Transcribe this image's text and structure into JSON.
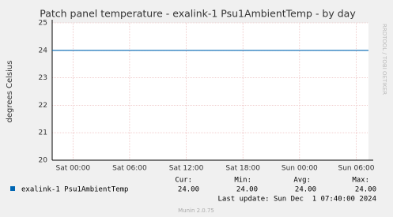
{
  "chart_data": {
    "type": "line",
    "title": "Patch panel temperature - exalink-1 Psu1AmbientTemp - by day",
    "y_label": "degrees Celsius",
    "side_text": "RRDTOOL / TOBI OETIKER",
    "x": [
      -2.2,
      31.3
    ],
    "xlim": [
      -2.2,
      31.3
    ],
    "xticks": [
      {
        "value": 0,
        "label": "Sat 00:00"
      },
      {
        "value": 6,
        "label": "Sat 06:00"
      },
      {
        "value": 12,
        "label": "Sat 12:00"
      },
      {
        "value": 18,
        "label": "Sat 18:00"
      },
      {
        "value": 24,
        "label": "Sun 00:00"
      },
      {
        "value": 30,
        "label": "Sun 06:00"
      }
    ],
    "ylim": [
      20,
      25
    ],
    "yticks": [
      20,
      21,
      22,
      23,
      24,
      25
    ],
    "grid": true,
    "series": [
      {
        "name": "exalink-1 Psu1AmbientTemp",
        "color": "#0066b3",
        "values": [
          24,
          24
        ]
      }
    ],
    "stats": [
      {
        "label": "Cur:",
        "value": "24.00"
      },
      {
        "label": "Min:",
        "value": "24.00"
      },
      {
        "label": "Avg:",
        "value": "24.00"
      },
      {
        "label": "Max:",
        "value": "24.00"
      }
    ],
    "last_update": "Last update: Sun Dec  1 07:40:00 2024",
    "footer": "Munin 2.0.75"
  }
}
